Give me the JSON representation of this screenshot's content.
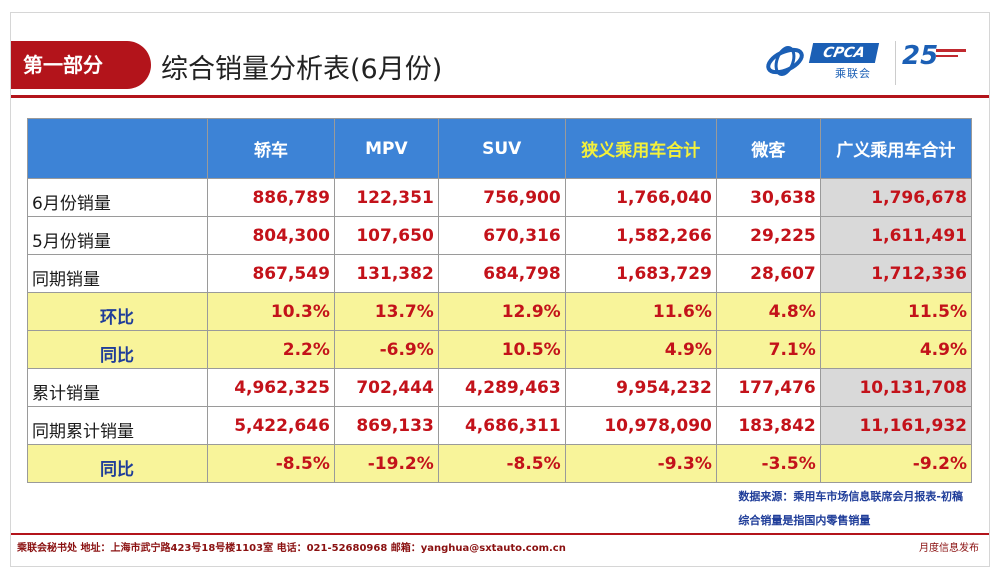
{
  "header": {
    "section_label": "第一部分",
    "title": "综合销量分析表(6月份)"
  },
  "logo": {
    "cpca_text": "CPCA",
    "cpca_sub": "乘联会",
    "anniversary_number": "25"
  },
  "table": {
    "columns": [
      "轿车",
      "MPV",
      "SUV",
      "狭义乘用车合计",
      "微客",
      "广义乘用车合计"
    ],
    "rows": [
      {
        "label": "6月份销量",
        "values": [
          "886,789",
          "122,351",
          "756,900",
          "1,766,040",
          "30,638",
          "1,796,678"
        ]
      },
      {
        "label": "5月份销量",
        "values": [
          "804,300",
          "107,650",
          "670,316",
          "1,582,266",
          "29,225",
          "1,611,491"
        ]
      },
      {
        "label": "同期销量",
        "values": [
          "867,549",
          "131,382",
          "684,798",
          "1,683,729",
          "28,607",
          "1,712,336"
        ]
      },
      {
        "label": "环比",
        "values": [
          "10.3%",
          "13.7%",
          "12.9%",
          "11.6%",
          "4.8%",
          "11.5%"
        ]
      },
      {
        "label": "同比",
        "values": [
          "2.2%",
          "-6.9%",
          "10.5%",
          "4.9%",
          "7.1%",
          "4.9%"
        ]
      },
      {
        "label": "累计销量",
        "values": [
          "4,962,325",
          "702,444",
          "4,289,463",
          "9,954,232",
          "177,476",
          "10,131,708"
        ]
      },
      {
        "label": "同期累计销量",
        "values": [
          "5,422,646",
          "869,133",
          "4,686,311",
          "10,978,090",
          "183,842",
          "11,161,932"
        ]
      },
      {
        "label": "同比",
        "values": [
          "-8.5%",
          "-19.2%",
          "-8.5%",
          "-9.3%",
          "-3.5%",
          "-9.2%"
        ]
      }
    ]
  },
  "notes": {
    "line1": "数据来源：乘用车市场信息联席会月报表-初稿",
    "line2": "综合销量是指国内零售销量"
  },
  "footer": {
    "text": "乘联会秘书处   地址：上海市武宁路423号18号楼1103室   电话：021-52680968   邮箱：yanghua@sxtauto.com.cn",
    "right_text": "月度信息发布"
  },
  "colors": {
    "brand_red": "#b3141b",
    "header_blue": "#3d83d6",
    "highlight_yellow": "#f8f49a",
    "value_red": "#c3121a",
    "label_navy": "#1f3d99"
  }
}
